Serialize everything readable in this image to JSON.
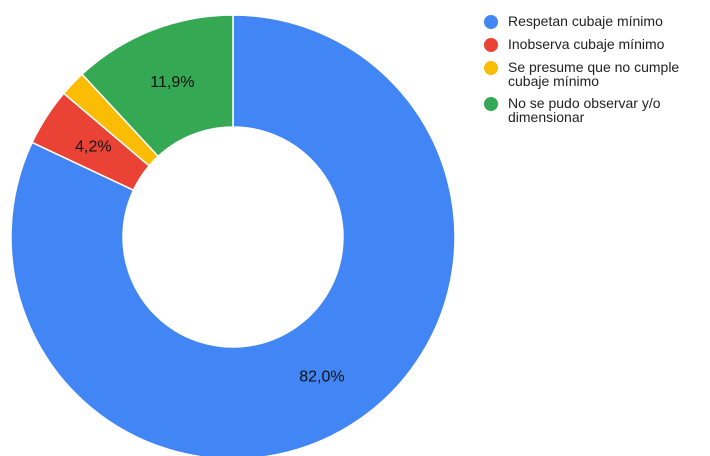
{
  "chart_data": {
    "type": "pie",
    "donut": true,
    "title": "",
    "legend_position": "right",
    "slices": [
      {
        "label": "Respetan cubaje mínimo",
        "value": 82.0,
        "display": "82,0%",
        "color": "#4285f4"
      },
      {
        "label": "Inobserva cubaje mínimo",
        "value": 4.2,
        "display": "4,2%",
        "color": "#ea4335"
      },
      {
        "label": "Se presume que no cumple cubaje mínimo",
        "value": 1.9,
        "display": "",
        "color": "#fbbc04"
      },
      {
        "label": "No se pudo observar y/o dimensionar",
        "value": 11.9,
        "display": "11,9%",
        "color": "#34a853"
      }
    ]
  }
}
